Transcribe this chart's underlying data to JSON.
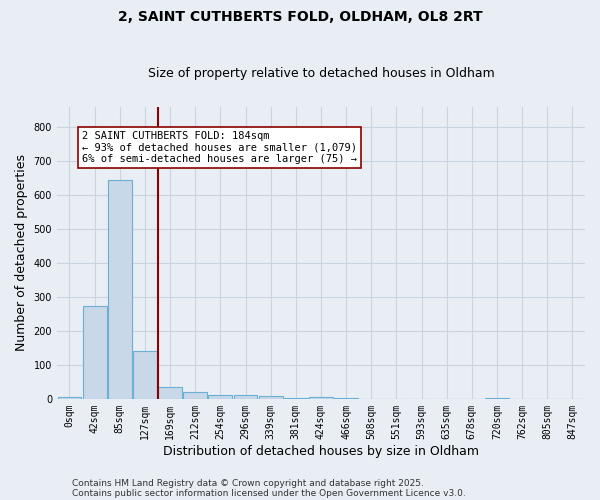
{
  "title1": "2, SAINT CUTHBERTS FOLD, OLDHAM, OL8 2RT",
  "title2": "Size of property relative to detached houses in Oldham",
  "xlabel": "Distribution of detached houses by size in Oldham",
  "ylabel": "Number of detached properties",
  "bins": [
    "0sqm",
    "42sqm",
    "85sqm",
    "127sqm",
    "169sqm",
    "212sqm",
    "254sqm",
    "296sqm",
    "339sqm",
    "381sqm",
    "424sqm",
    "466sqm",
    "508sqm",
    "551sqm",
    "593sqm",
    "635sqm",
    "678sqm",
    "720sqm",
    "762sqm",
    "805sqm",
    "847sqm"
  ],
  "values": [
    5,
    275,
    645,
    140,
    35,
    20,
    12,
    10,
    7,
    3,
    5,
    2,
    0,
    0,
    0,
    0,
    0,
    3,
    0,
    0,
    0
  ],
  "bar_color": "#c8d8e8",
  "bar_edge_color": "#6baed6",
  "vline_color": "#8b0000",
  "annotation_text": "2 SAINT CUTHBERTS FOLD: 184sqm\n← 93% of detached houses are smaller (1,079)\n6% of semi-detached houses are larger (75) →",
  "annotation_box_color": "#ffffff",
  "annotation_box_edge": "#8b0000",
  "ylim": [
    0,
    860
  ],
  "yticks": [
    0,
    100,
    200,
    300,
    400,
    500,
    600,
    700,
    800
  ],
  "footer1": "Contains HM Land Registry data © Crown copyright and database right 2025.",
  "footer2": "Contains public sector information licensed under the Open Government Licence v3.0.",
  "bg_color": "#e8eef4",
  "grid_color": "#c8d4e0",
  "title1_fontsize": 10,
  "title2_fontsize": 9,
  "axis_label_fontsize": 9,
  "tick_fontsize": 7,
  "annotation_fontsize": 7.5,
  "footer_fontsize": 6.5
}
